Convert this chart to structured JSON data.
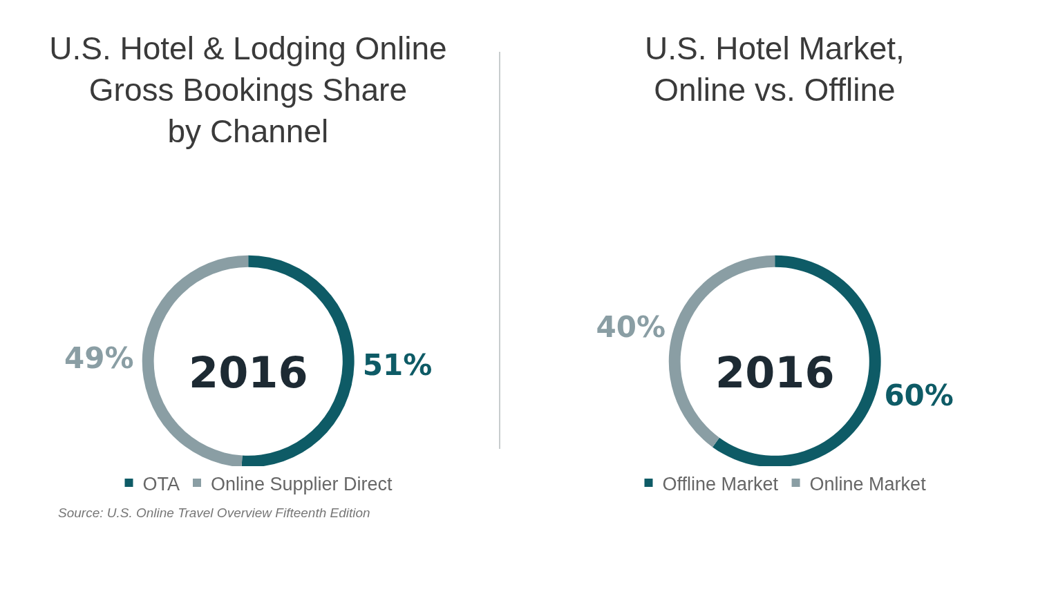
{
  "chart_data": [
    {
      "type": "donut",
      "title": "U.S. Hotel & Lodging Online\nGross Bookings Share\nby Channel",
      "categories": [
        "OTA",
        "Online Supplier Direct"
      ],
      "values": [
        51,
        49
      ],
      "colors": [
        "#0e5b66",
        "#8a9ea4"
      ],
      "value_labels": [
        "51%",
        "49%"
      ],
      "legend": "bottom",
      "annotations": [
        "2016",
        "Source: U.S. Online Travel Overview Fifteenth Edition"
      ]
    },
    {
      "type": "donut",
      "title": "U.S. Hotel Market,\nOnline vs. Offline",
      "categories": [
        "Offline Market",
        "Online Market"
      ],
      "values": [
        60,
        40
      ],
      "colors": [
        "#0e5b66",
        "#8a9ea4"
      ],
      "value_labels": [
        "60%",
        "40%"
      ],
      "legend": "bottom",
      "annotations": [
        "2016"
      ]
    }
  ]
}
